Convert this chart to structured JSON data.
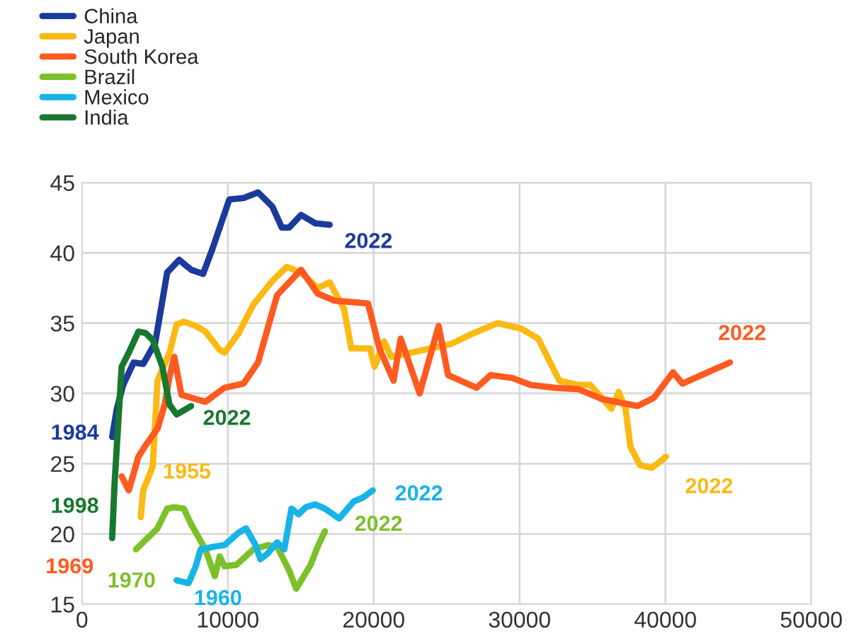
{
  "chart_data": {
    "type": "line",
    "xlim": [
      0,
      50000
    ],
    "ylim": [
      15,
      45
    ],
    "xticks": [
      0,
      10000,
      20000,
      30000,
      40000,
      50000
    ],
    "yticks": [
      15,
      20,
      25,
      30,
      35,
      40,
      45
    ],
    "grid": true,
    "legend": "top left",
    "marker": "none",
    "line_style": "solid",
    "series": [
      {
        "name": "China",
        "color": "#1a3a9c",
        "x": [
          2070,
          2390,
          2820,
          3540,
          4200,
          5020,
          5840,
          6660,
          7480,
          8300,
          8950,
          10100,
          11080,
          12070,
          13050,
          13700,
          14200,
          15020,
          16000,
          16980
        ],
        "values": [
          26.9,
          28.9,
          30.6,
          32.2,
          32.1,
          33.6,
          38.6,
          39.5,
          38.8,
          38.5,
          40.3,
          43.8,
          43.9,
          44.3,
          43.3,
          41.8,
          41.8,
          42.7,
          42.1,
          42.0
        ]
      },
      {
        "name": "Japan",
        "color": "#fbb913",
        "x": [
          4030,
          4200,
          4850,
          5180,
          6000,
          6490,
          6980,
          7800,
          8460,
          9440,
          9770,
          10750,
          11740,
          13050,
          14030,
          15020,
          16160,
          16980,
          17970,
          18460,
          19740,
          20060,
          20710,
          21200,
          25260,
          26880,
          28500,
          30130,
          31270,
          32730,
          34030,
          34840,
          36300,
          36790,
          37270,
          37600,
          38250,
          39060,
          39710,
          40030
        ],
        "values": [
          21.2,
          23.1,
          24.8,
          30.9,
          32.9,
          34.9,
          35.1,
          34.8,
          34.4,
          33.1,
          32.9,
          34.3,
          36.3,
          38.0,
          39.0,
          38.6,
          37.5,
          37.9,
          36.0,
          33.2,
          33.2,
          31.9,
          33.7,
          32.6,
          33.5,
          34.3,
          35.0,
          34.6,
          33.9,
          30.9,
          30.6,
          30.6,
          28.9,
          30.1,
          28.9,
          26.2,
          24.9,
          24.7,
          25.2,
          25.5
        ]
      },
      {
        "name": "South Korea",
        "color": "#ff5a1f",
        "x": [
          2720,
          3210,
          3870,
          4360,
          5180,
          5670,
          6000,
          6330,
          6820,
          7480,
          8460,
          9770,
          11080,
          12070,
          13380,
          15020,
          16160,
          17310,
          19610,
          20390,
          21360,
          21850,
          23150,
          24450,
          25100,
          27050,
          28020,
          29480,
          30780,
          32400,
          34030,
          35650,
          38080,
          39220,
          40520,
          41170,
          44420
        ],
        "values": [
          24.1,
          23.1,
          25.5,
          26.3,
          27.5,
          29.2,
          31.2,
          32.6,
          29.9,
          29.7,
          29.4,
          30.4,
          30.7,
          32.2,
          37.0,
          38.8,
          37.1,
          36.6,
          36.4,
          33.2,
          30.9,
          33.9,
          30.0,
          34.8,
          31.3,
          30.4,
          31.3,
          31.1,
          30.6,
          30.4,
          30.3,
          29.6,
          29.1,
          29.7,
          31.5,
          30.7,
          32.2
        ]
      },
      {
        "name": "Brazil",
        "color": "#7dc12a",
        "x": [
          3700,
          5180,
          5840,
          6330,
          6980,
          7480,
          8460,
          9110,
          9440,
          9770,
          10590,
          11740,
          12720,
          13380,
          14200,
          14690,
          15670,
          16160,
          16660
        ],
        "values": [
          18.9,
          20.4,
          21.8,
          21.9,
          21.8,
          20.7,
          18.9,
          17.0,
          18.4,
          17.7,
          17.8,
          18.9,
          19.2,
          19.1,
          17.4,
          16.1,
          17.8,
          19.1,
          20.2
        ]
      },
      {
        "name": "Mexico",
        "color": "#18b4e8",
        "x": [
          6490,
          7310,
          7800,
          8130,
          9110,
          9770,
          10750,
          11250,
          11900,
          12230,
          12720,
          13380,
          13870,
          14360,
          14850,
          15340,
          16000,
          16660,
          17640,
          18620,
          19280,
          19930
        ],
        "values": [
          16.7,
          16.5,
          17.7,
          18.9,
          19.1,
          19.2,
          20.1,
          20.4,
          19.2,
          18.2,
          18.6,
          19.4,
          18.9,
          21.8,
          21.4,
          21.9,
          22.1,
          21.8,
          21.1,
          22.3,
          22.6,
          23.1
        ]
      },
      {
        "name": "India",
        "color": "#18782f",
        "x": [
          2070,
          2230,
          2720,
          3210,
          3870,
          4360,
          4850,
          5510,
          6000,
          6490,
          6820,
          7480
        ],
        "values": [
          19.7,
          23.5,
          31.9,
          32.9,
          34.4,
          34.3,
          33.8,
          31.9,
          29.2,
          28.5,
          28.7,
          29.1
        ]
      }
    ],
    "annotations": [
      "2022",
      "2022",
      "2022",
      "2022",
      "2022",
      "2022",
      "1984",
      "1955",
      "1969",
      "1970",
      "1960",
      "1998"
    ]
  }
}
